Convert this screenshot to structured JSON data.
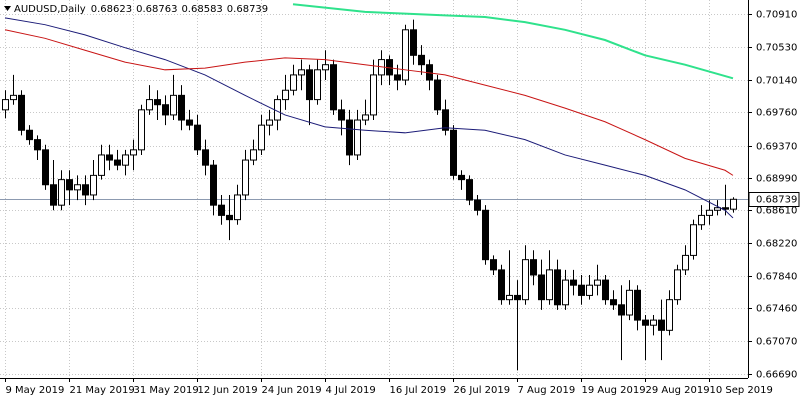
{
  "chart_data": {
    "type": "candlestick",
    "title": "AUDUSD,Daily",
    "categories": [
      "9 May 2019",
      null,
      null,
      null,
      null,
      null,
      null,
      null,
      "21 May 2019",
      null,
      null,
      null,
      null,
      null,
      null,
      null,
      "31 May 2019",
      null,
      null,
      null,
      null,
      null,
      null,
      null,
      "12 Jun 2019",
      null,
      null,
      null,
      null,
      null,
      null,
      null,
      "24 Jun 2019",
      null,
      null,
      null,
      null,
      null,
      null,
      null,
      "4 Jul 2019",
      null,
      null,
      null,
      null,
      null,
      null,
      null,
      "16 Jul 2019",
      null,
      null,
      null,
      null,
      null,
      null,
      null,
      "26 Jul 2019",
      null,
      null,
      null,
      null,
      null,
      null,
      null,
      "7 Aug 2019",
      null,
      null,
      null,
      null,
      null,
      null,
      null,
      "19 Aug 2019",
      null,
      null,
      null,
      null,
      null,
      null,
      null,
      "29 Aug 2019",
      null,
      null,
      null,
      null,
      null,
      null,
      null,
      "10 Sep 2019",
      null,
      null,
      null
    ],
    "open": [
      0.6979,
      0.6991,
      0.6996,
      0.6955,
      0.6944,
      0.6932,
      0.6891,
      0.6867,
      0.6897,
      0.6885,
      0.6891,
      0.6879,
      0.6902,
      0.6926,
      0.692,
      0.6914,
      0.6926,
      0.6932,
      0.6979,
      0.6991,
      0.6985,
      0.6973,
      0.6996,
      0.6967,
      0.6961,
      0.6932,
      0.6914,
      0.6867,
      0.6855,
      0.685,
      0.6879,
      0.692,
      0.6932,
      0.6961,
      0.6967,
      0.6991,
      0.7002,
      0.702,
      0.7026,
      0.6991,
      0.7026,
      0.7032,
      0.6979,
      0.6967,
      0.6926,
      0.6967,
      0.6973,
      0.702,
      0.7038,
      0.702,
      0.7014,
      0.7073,
      0.7043,
      0.7032,
      0.7014,
      0.6979,
      0.6955,
      0.6902,
      0.6897,
      0.6873,
      0.6861,
      0.6803,
      0.6791,
      0.6756,
      0.6761,
      0.6756,
      0.6803,
      0.6785,
      0.6756,
      0.6791,
      0.675,
      0.6779,
      0.6773,
      0.6761,
      0.6773,
      0.6779,
      0.6756,
      0.675,
      0.6738,
      0.6767,
      0.6732,
      0.6726,
      0.6732,
      0.672,
      0.6756,
      0.6791,
      0.6808,
      0.6844,
      0.6855,
      0.6861,
      0.6864,
      0.68623
    ],
    "high": [
      0.7002,
      0.702,
      0.7002,
      0.6961,
      0.6949,
      0.6938,
      0.692,
      0.6908,
      0.6908,
      0.6902,
      0.6902,
      0.692,
      0.6938,
      0.6938,
      0.6932,
      0.6932,
      0.6944,
      0.6985,
      0.7008,
      0.7002,
      0.6996,
      0.702,
      0.7008,
      0.6979,
      0.6973,
      0.6944,
      0.692,
      0.6879,
      0.6879,
      0.6891,
      0.6932,
      0.6944,
      0.6973,
      0.6979,
      0.6996,
      0.702,
      0.7032,
      0.7038,
      0.7032,
      0.7038,
      0.7049,
      0.7038,
      0.6991,
      0.6979,
      0.6979,
      0.6991,
      0.7038,
      0.7049,
      0.7043,
      0.7032,
      0.7079,
      0.7085,
      0.7055,
      0.7038,
      0.702,
      0.6991,
      0.6961,
      0.6908,
      0.6902,
      0.6879,
      0.6867,
      0.6808,
      0.6797,
      0.6814,
      0.6779,
      0.682,
      0.6814,
      0.6803,
      0.6814,
      0.6803,
      0.6791,
      0.6791,
      0.6785,
      0.6785,
      0.6797,
      0.6785,
      0.6767,
      0.6773,
      0.6779,
      0.6773,
      0.6738,
      0.6738,
      0.6756,
      0.6767,
      0.6797,
      0.682,
      0.685,
      0.6867,
      0.6873,
      0.6873,
      0.6891,
      0.68763
    ],
    "low": [
      0.6969,
      0.6985,
      0.6949,
      0.6938,
      0.692,
      0.6885,
      0.6861,
      0.6861,
      0.6867,
      0.6873,
      0.6867,
      0.6873,
      0.6897,
      0.6908,
      0.6908,
      0.6902,
      0.6908,
      0.6926,
      0.6973,
      0.6967,
      0.6961,
      0.6967,
      0.6955,
      0.6955,
      0.6926,
      0.6902,
      0.6855,
      0.6844,
      0.6826,
      0.6844,
      0.6873,
      0.6914,
      0.6926,
      0.6949,
      0.6955,
      0.6979,
      0.6996,
      0.7002,
      0.6961,
      0.6985,
      0.7014,
      0.6973,
      0.6949,
      0.6914,
      0.692,
      0.6961,
      0.6967,
      0.7008,
      0.7008,
      0.7002,
      0.7008,
      0.7032,
      0.702,
      0.7002,
      0.6973,
      0.6949,
      0.6897,
      0.6885,
      0.6867,
      0.6855,
      0.6797,
      0.6785,
      0.675,
      0.675,
      0.6673,
      0.675,
      0.6773,
      0.6744,
      0.675,
      0.6744,
      0.6744,
      0.6761,
      0.675,
      0.6756,
      0.6761,
      0.675,
      0.6744,
      0.6685,
      0.6732,
      0.672,
      0.6685,
      0.6714,
      0.6685,
      0.6714,
      0.675,
      0.6785,
      0.6803,
      0.6838,
      0.6844,
      0.6855,
      0.6855,
      0.68583
    ],
    "close": [
      0.6991,
      0.6996,
      0.6955,
      0.6944,
      0.6932,
      0.6891,
      0.6867,
      0.6897,
      0.6885,
      0.6891,
      0.6879,
      0.6902,
      0.6926,
      0.692,
      0.6914,
      0.6926,
      0.6932,
      0.6979,
      0.6991,
      0.6985,
      0.6973,
      0.6996,
      0.6967,
      0.6961,
      0.6932,
      0.6914,
      0.6867,
      0.6855,
      0.685,
      0.6879,
      0.692,
      0.6932,
      0.6961,
      0.6967,
      0.6991,
      0.7002,
      0.702,
      0.7026,
      0.6991,
      0.7026,
      0.7032,
      0.6979,
      0.6967,
      0.6926,
      0.6967,
      0.6973,
      0.702,
      0.7038,
      0.702,
      0.7014,
      0.7073,
      0.7043,
      0.7032,
      0.7014,
      0.6979,
      0.6955,
      0.6902,
      0.6897,
      0.6873,
      0.6861,
      0.6803,
      0.6791,
      0.6756,
      0.6761,
      0.6756,
      0.6803,
      0.6785,
      0.6756,
      0.6791,
      0.675,
      0.6779,
      0.6773,
      0.6761,
      0.6773,
      0.6779,
      0.6756,
      0.675,
      0.6738,
      0.6767,
      0.6732,
      0.6726,
      0.6732,
      0.672,
      0.6756,
      0.6791,
      0.6808,
      0.6844,
      0.6855,
      0.6861,
      0.6864,
      0.68623,
      0.68739
    ],
    "lines": [
      {
        "color": "#1c1c78",
        "x": [
          0,
          5,
          10,
          15,
          20,
          25,
          30,
          35,
          40,
          45,
          50,
          55,
          60,
          65,
          70,
          75,
          80,
          85,
          90,
          91
        ],
        "values": [
          0.7087,
          0.7079,
          0.7067,
          0.7052,
          0.7038,
          0.702,
          0.6996,
          0.6973,
          0.6959,
          0.6955,
          0.6952,
          0.6958,
          0.6955,
          0.6944,
          0.6926,
          0.6914,
          0.6902,
          0.6885,
          0.6861,
          0.6852
        ]
      },
      {
        "color": "#c81414",
        "x": [
          0,
          5,
          10,
          15,
          20,
          25,
          30,
          35,
          40,
          45,
          50,
          55,
          60,
          65,
          70,
          75,
          80,
          85,
          90,
          91
        ],
        "values": [
          0.7073,
          0.7063,
          0.7049,
          0.7035,
          0.7026,
          0.7028,
          0.7035,
          0.704,
          0.7038,
          0.7032,
          0.7026,
          0.702,
          0.7008,
          0.6996,
          0.6981,
          0.6965,
          0.6944,
          0.6922,
          0.6908,
          0.6902
        ]
      },
      {
        "color": "#2fe28c",
        "x": [
          36,
          40,
          45,
          50,
          55,
          60,
          65,
          70,
          75,
          80,
          85,
          91
        ],
        "values": [
          0.7103,
          0.7099,
          0.7094,
          0.7092,
          0.709,
          0.7088,
          0.7082,
          0.7073,
          0.7061,
          0.7043,
          0.7032,
          0.7016
        ]
      }
    ],
    "ylim": [
      0.6664,
      0.7108
    ],
    "yticks": [
      {
        "value": 0.7091,
        "label": "0.70910"
      },
      {
        "value": 0.7053,
        "label": "0.70530"
      },
      {
        "value": 0.7014,
        "label": "0.70140"
      },
      {
        "value": 0.6976,
        "label": "0.69760"
      },
      {
        "value": 0.6937,
        "label": "0.69370"
      },
      {
        "value": 0.6899,
        "label": "0.68990"
      },
      {
        "value": 0.6861,
        "label": "0.68610"
      },
      {
        "value": 0.6822,
        "label": "0.68220"
      },
      {
        "value": 0.6784,
        "label": "0.67840"
      },
      {
        "value": 0.6746,
        "label": "0.67460"
      },
      {
        "value": 0.6707,
        "label": "0.67070"
      },
      {
        "value": 0.6669,
        "label": "0.66690"
      }
    ],
    "grid": true,
    "bull_color": "#ffffff",
    "bear_color": "#000000",
    "price_line_color": "#8c9ab0"
  }
}
